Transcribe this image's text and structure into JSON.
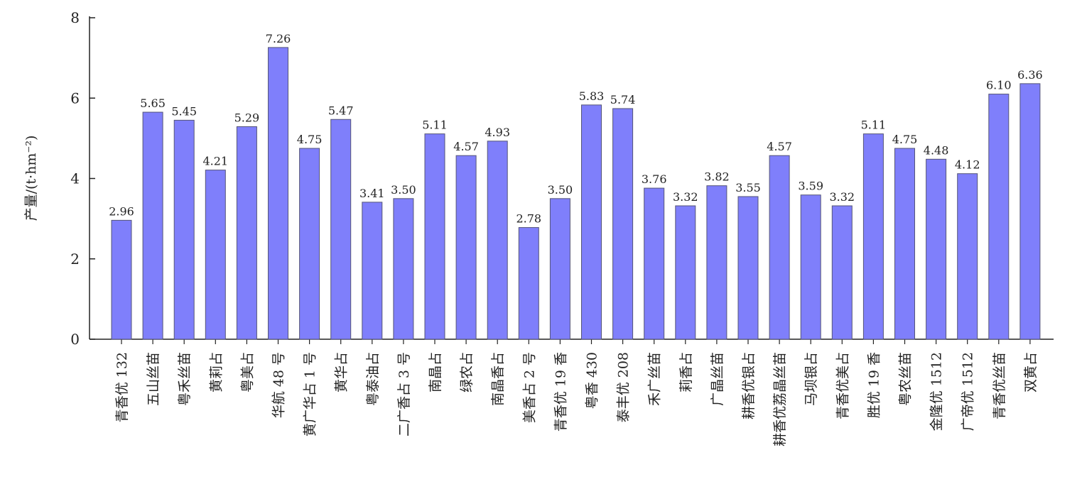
{
  "chart_data": {
    "type": "bar",
    "ylabel": "产量/(t·hm⁻²)",
    "ylim": [
      0,
      8
    ],
    "yticks": [
      0,
      2,
      4,
      6,
      8
    ],
    "bar_color": "#7f7ffb",
    "categories": [
      "青香优 132",
      "五山丝苗",
      "粤禾丝苗",
      "黄莉占",
      "粤美占",
      "华航 48 号",
      "黄广华占 1 号",
      "黄华占",
      "粤泰油占",
      "二广香占 3 号",
      "南晶占",
      "绿农占",
      "南晶香占",
      "美香占 2 号",
      "青香优 19 香",
      "粤香 430",
      "泰丰优 208",
      "禾广丝苗",
      "莉香占",
      "广晶丝苗",
      "耕香优银占",
      "耕香优荔晶丝苗",
      "马坝银占",
      "青香优美占",
      "胜优 19 香",
      "粤农丝苗",
      "金隆优 1512",
      "广帝优 1512",
      "青香优丝苗",
      "双黄占"
    ],
    "values": [
      2.96,
      5.65,
      5.45,
      4.21,
      5.29,
      7.26,
      4.75,
      5.47,
      3.41,
      3.5,
      5.11,
      4.57,
      4.93,
      2.78,
      3.5,
      5.83,
      5.74,
      3.76,
      3.32,
      3.82,
      3.55,
      4.57,
      3.59,
      3.32,
      5.11,
      4.75,
      4.48,
      4.12,
      6.1,
      6.36
    ],
    "value_labels": [
      "2.96",
      "5.65",
      "5.45",
      "4.21",
      "5.29",
      "7.26",
      "4.75",
      "5.47",
      "3.41",
      "3.50",
      "5.11",
      "4.57",
      "4.93",
      "2.78",
      "3.50",
      "5.83",
      "5.74",
      "3.76",
      "3.32",
      "3.82",
      "3.55",
      "4.57",
      "3.59",
      "3.32",
      "5.11",
      "4.75",
      "4.48",
      "4.12",
      "6.10",
      "6.36"
    ]
  }
}
